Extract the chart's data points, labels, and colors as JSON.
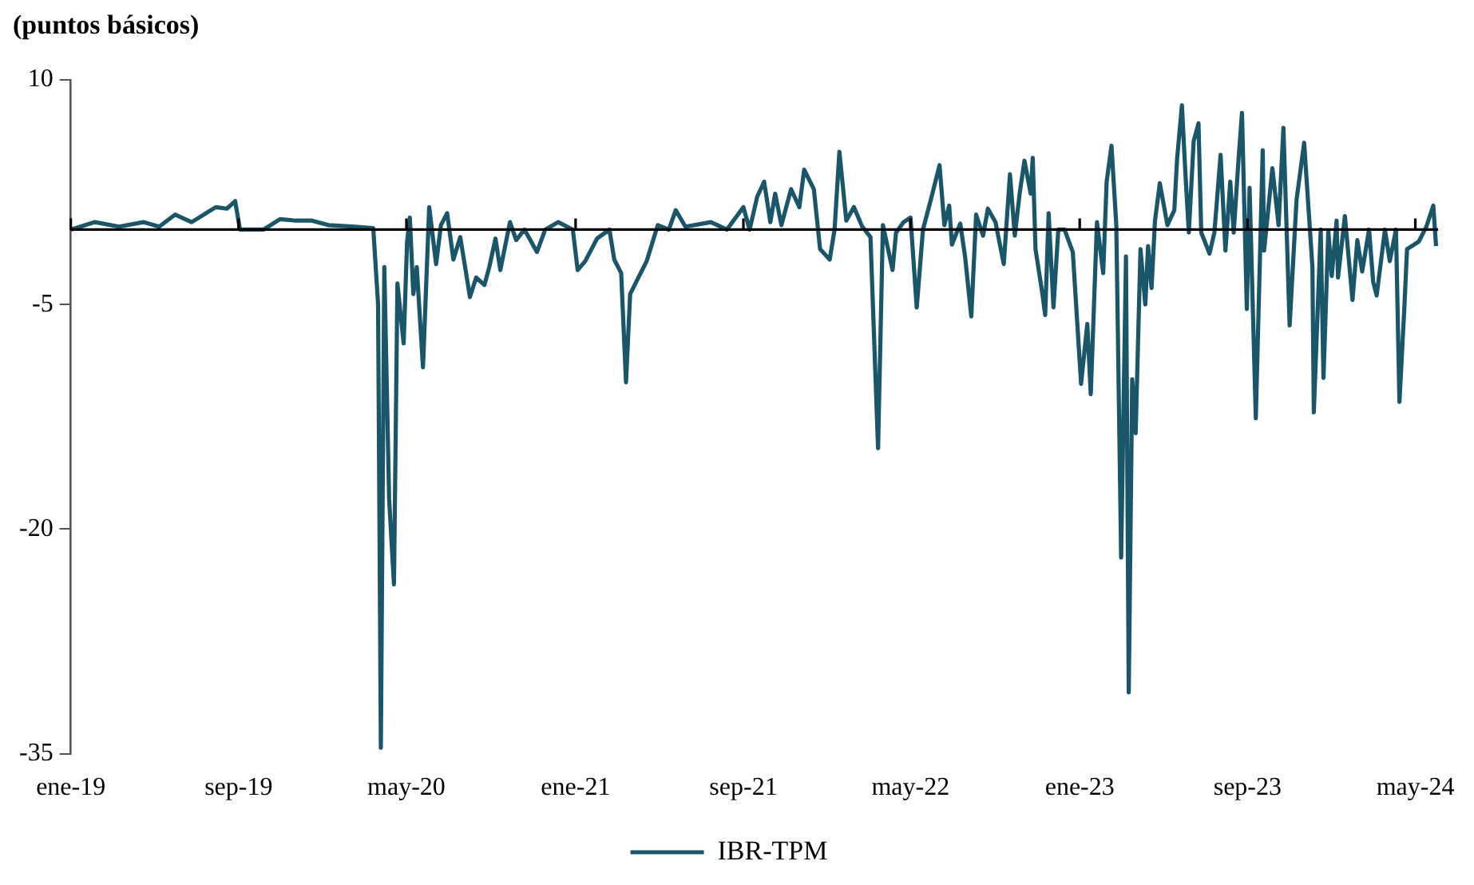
{
  "chart_data": {
    "type": "line",
    "ylabel": "(puntos básicos)",
    "legend": "bottom",
    "marker": "none",
    "line_style": "solid",
    "xlim": [
      "2019-01-01",
      "2024-06-03"
    ],
    "xticks": [
      {
        "value": "2019-01-01",
        "label": "ene-19"
      },
      {
        "value": "2019-09-01",
        "label": "sep-19"
      },
      {
        "value": "2020-05-01",
        "label": "may-20"
      },
      {
        "value": "2021-01-01",
        "label": "ene-21"
      },
      {
        "value": "2021-09-01",
        "label": "sep-21"
      },
      {
        "value": "2022-05-01",
        "label": "may-22"
      },
      {
        "value": "2023-01-01",
        "label": "ene-23"
      },
      {
        "value": "2023-09-01",
        "label": "sep-23"
      },
      {
        "value": "2024-05-01",
        "label": "may-24"
      }
    ],
    "ylim": [
      -35,
      10
    ],
    "yticks": [
      10,
      -5,
      -20,
      -35
    ],
    "ref_lines": [
      {
        "axis": "y",
        "value": 0,
        "color": "#000000"
      }
    ],
    "x": [
      "2019-01-01",
      "2019-02-05",
      "2019-03-12",
      "2019-04-16",
      "2019-05-09",
      "2019-06-01",
      "2019-06-25",
      "2019-07-30",
      "2019-08-15",
      "2019-08-27",
      "2019-09-03",
      "2019-10-07",
      "2019-10-31",
      "2019-11-23",
      "2019-12-16",
      "2020-01-09",
      "2020-02-13",
      "2020-03-14",
      "2020-03-21",
      "2020-03-25",
      "2020-03-30",
      "2020-04-06",
      "2020-04-13",
      "2020-04-18",
      "2020-04-27",
      "2020-05-02",
      "2020-05-06",
      "2020-05-11",
      "2020-05-16",
      "2020-05-25",
      "2020-06-03",
      "2020-06-13",
      "2020-06-20",
      "2020-06-29",
      "2020-07-08",
      "2020-07-18",
      "2020-08-01",
      "2020-08-10",
      "2020-08-22",
      "2020-08-29",
      "2020-09-07",
      "2020-09-14",
      "2020-09-28",
      "2020-10-07",
      "2020-10-19",
      "2020-11-06",
      "2020-11-18",
      "2020-12-07",
      "2020-12-28",
      "2021-01-04",
      "2021-01-15",
      "2021-02-01",
      "2021-02-19",
      "2021-02-26",
      "2021-03-08",
      "2021-03-15",
      "2021-03-21",
      "2021-04-02",
      "2021-04-14",
      "2021-04-30",
      "2021-05-16",
      "2021-05-26",
      "2021-06-09",
      "2021-07-16",
      "2021-08-08",
      "2021-09-01",
      "2021-09-10",
      "2021-09-21",
      "2021-10-01",
      "2021-10-10",
      "2021-10-17",
      "2021-10-26",
      "2021-11-09",
      "2021-11-21",
      "2021-11-28",
      "2021-12-12",
      "2021-12-21",
      "2022-01-04",
      "2022-01-11",
      "2022-01-18",
      "2022-01-28",
      "2022-02-08",
      "2022-02-20",
      "2022-03-04",
      "2022-03-15",
      "2022-03-22",
      "2022-04-05",
      "2022-04-10",
      "2022-04-21",
      "2022-05-01",
      "2022-05-10",
      "2022-05-19",
      "2022-05-31",
      "2022-06-12",
      "2022-06-19",
      "2022-06-26",
      "2022-06-30",
      "2022-07-12",
      "2022-07-19",
      "2022-07-28",
      "2022-08-04",
      "2022-08-14",
      "2022-08-21",
      "2022-09-01",
      "2022-09-13",
      "2022-09-22",
      "2022-09-29",
      "2022-10-06",
      "2022-10-13",
      "2022-10-22",
      "2022-10-25",
      "2022-10-29",
      "2022-11-08",
      "2022-11-12",
      "2022-11-17",
      "2022-11-24",
      "2022-12-01",
      "2022-12-10",
      "2022-12-22",
      "2023-01-03",
      "2023-01-12",
      "2023-01-17",
      "2023-01-26",
      "2023-02-04",
      "2023-02-09",
      "2023-02-16",
      "2023-02-23",
      "2023-03-02",
      "2023-03-09",
      "2023-03-13",
      "2023-03-18",
      "2023-03-23",
      "2023-03-30",
      "2023-04-06",
      "2023-04-10",
      "2023-04-15",
      "2023-04-20",
      "2023-04-27",
      "2023-05-08",
      "2023-05-18",
      "2023-05-22",
      "2023-05-29",
      "2023-06-03",
      "2023-06-08",
      "2023-06-15",
      "2023-06-22",
      "2023-06-26",
      "2023-07-08",
      "2023-07-15",
      "2023-07-24",
      "2023-07-31",
      "2023-08-07",
      "2023-08-12",
      "2023-08-19",
      "2023-08-24",
      "2023-08-31",
      "2023-09-04",
      "2023-09-13",
      "2023-09-23",
      "2023-09-25",
      "2023-10-07",
      "2023-10-16",
      "2023-10-23",
      "2023-11-01",
      "2023-11-11",
      "2023-11-22",
      "2023-12-04",
      "2023-12-06",
      "2023-12-16",
      "2023-12-20",
      "2023-12-27",
      "2024-01-01",
      "2024-01-08",
      "2024-01-10",
      "2024-01-20",
      "2024-01-31",
      "2024-02-07",
      "2024-02-14",
      "2024-02-24",
      "2024-03-01",
      "2024-03-06",
      "2024-03-18",
      "2024-03-25",
      "2024-04-03",
      "2024-04-08",
      "2024-04-15",
      "2024-04-19",
      "2024-05-06",
      "2024-05-17",
      "2024-05-27",
      "2024-05-31"
    ],
    "series": [
      {
        "name": "IBR-TPM",
        "color": "#1a5669",
        "values": [
          0,
          0.5,
          0.2,
          0.5,
          0.2,
          1,
          0.5,
          1.5,
          1.4,
          1.9,
          0,
          0,
          0.7,
          0.6,
          0.6,
          0.3,
          0.2,
          0.1,
          -5,
          -34.6,
          -2.5,
          -18,
          -23.7,
          -3.6,
          -7.6,
          -0.8,
          0.8,
          -4.3,
          -2.5,
          -9.2,
          1.5,
          -2.3,
          0.3,
          1.1,
          -2,
          -0.5,
          -4.5,
          -3.2,
          -3.7,
          -2.5,
          -0.6,
          -2.7,
          0.5,
          -0.7,
          0,
          -1.5,
          0,
          0.5,
          0,
          -2.7,
          -2.1,
          -0.6,
          0,
          -2,
          -2.9,
          -10.2,
          -4.3,
          -3.2,
          -2.1,
          0.3,
          0,
          1.3,
          0.2,
          0.5,
          0,
          1.5,
          0,
          2.2,
          3.2,
          0.5,
          2.4,
          0.3,
          2.7,
          1.5,
          4,
          2.7,
          -1.3,
          -2,
          0,
          5.2,
          0.6,
          1.5,
          0.2,
          -0.5,
          -14.6,
          0.3,
          -2.7,
          -0.2,
          0.5,
          0.8,
          -5.2,
          0,
          2.1,
          4.3,
          0.3,
          1.6,
          -1,
          0.4,
          -1.8,
          -5.8,
          1,
          -0.4,
          1.4,
          0.5,
          -2.3,
          3.7,
          -0.4,
          2.4,
          4.6,
          2.4,
          4.8,
          -1.3,
          -4.3,
          -5.7,
          1.1,
          -5.2,
          0,
          0,
          -1.5,
          -10.3,
          -6.3,
          -11,
          0.5,
          -2.9,
          3.2,
          5.6,
          0.3,
          -21.9,
          -1.8,
          -30.9,
          -10,
          -13.6,
          -1.3,
          -5,
          -1.1,
          -3.9,
          0.6,
          3.1,
          0.3,
          1.3,
          4.7,
          8.3,
          3.8,
          -0.2,
          5.9,
          7.1,
          -0.2,
          -1.6,
          -0.2,
          5,
          -1.4,
          3.2,
          -0.2,
          4.7,
          7.8,
          -5.3,
          2.8,
          -12.6,
          5.3,
          -1.4,
          4.1,
          0.3,
          6.8,
          -6.4,
          2,
          5.8,
          -2.5,
          -12.2,
          0,
          -9.9,
          -0.1,
          -3.1,
          0.6,
          -3.2,
          0.9,
          -4.7,
          -0.7,
          -2.8,
          0,
          -3.5,
          -4.4,
          0,
          -2.1,
          0,
          -11.5,
          -5.3,
          -1.3,
          -0.8,
          0.2,
          1.6,
          -1.1
        ]
      }
    ]
  }
}
